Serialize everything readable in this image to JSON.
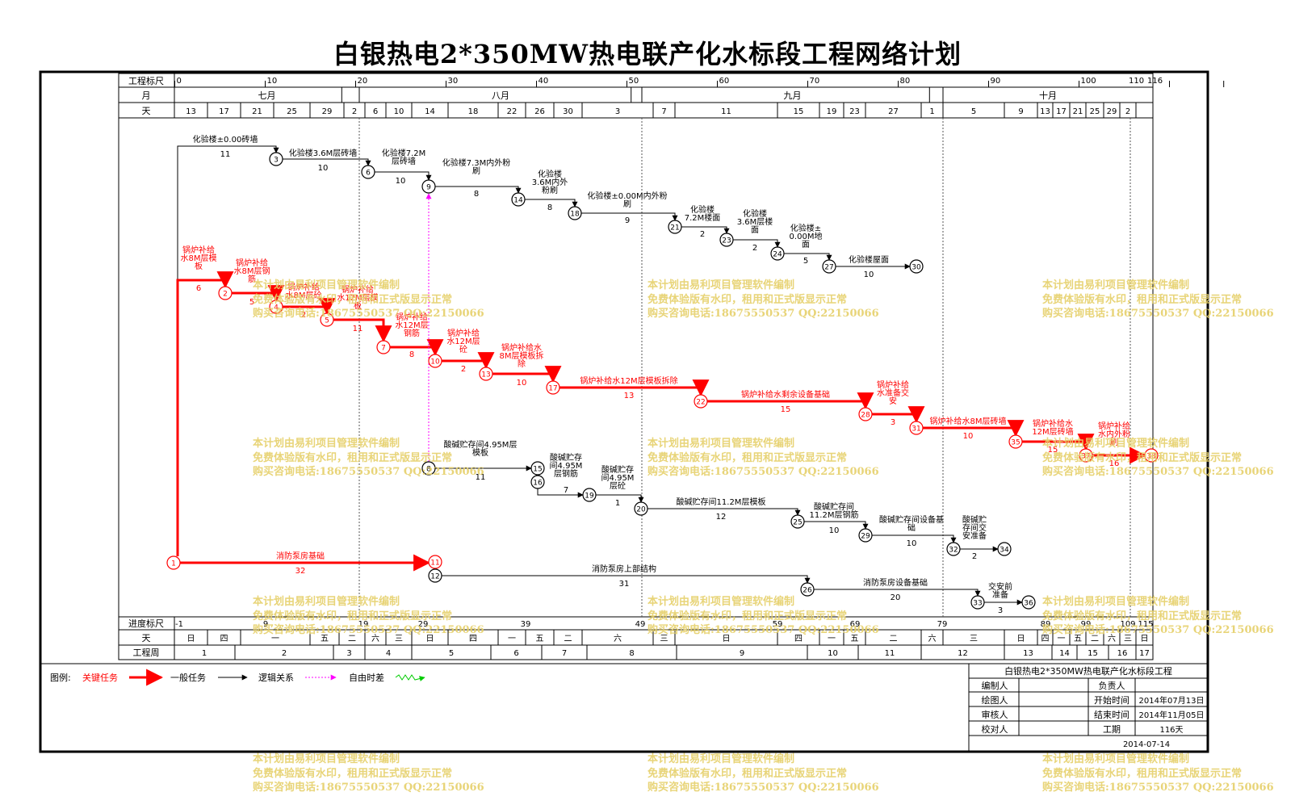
{
  "title": "白银热电2*350MW热电联产化水标段工程网络计划",
  "timeline": {
    "scale_label": "工程标尺",
    "month_label": "月",
    "day_label": "天",
    "scale_ticks": [
      "0",
      "10",
      "20",
      "30",
      "40",
      "50",
      "60",
      "70",
      "80",
      "90",
      "100",
      "110",
      "116"
    ],
    "months": [
      "七月",
      "八月",
      "九月",
      "十月"
    ],
    "days": [
      "13",
      "17",
      "21",
      "25",
      "29",
      "2",
      "6",
      "10",
      "14",
      "18",
      "22",
      "26",
      "30",
      "3",
      "7",
      "11",
      "15",
      "19",
      "23",
      "27",
      "1",
      "5",
      "9",
      "13",
      "17",
      "21",
      "25",
      "29",
      "2"
    ]
  },
  "bottom_scale": {
    "progress_label": "进度标尺",
    "day_label": "天",
    "week_label": "工程周",
    "progress_ticks": [
      "-1",
      "9",
      "19",
      "29",
      "39",
      "49",
      "59",
      "69",
      "79",
      "89",
      "99",
      "109",
      "115"
    ],
    "weekdays": [
      "日",
      "四",
      "一",
      "五",
      "二",
      "六",
      "三",
      "日",
      "四",
      "一",
      "五",
      "二",
      "六",
      "三",
      "日",
      "四",
      "一",
      "五",
      "二",
      "六",
      "三",
      "日",
      "四",
      "一",
      "五",
      "二",
      "六",
      "三",
      "日"
    ],
    "weeks": [
      "1",
      "2",
      "3",
      "4",
      "5",
      "6",
      "7",
      "8",
      "9",
      "10",
      "11",
      "12",
      "13",
      "14",
      "15",
      "16",
      "17"
    ]
  },
  "nodes": [
    "1",
    "2",
    "3",
    "4",
    "5",
    "6",
    "7",
    "8",
    "9",
    "10",
    "11",
    "12",
    "13",
    "14",
    "15",
    "16",
    "17",
    "18",
    "19",
    "20",
    "21",
    "22",
    "23",
    "24",
    "25",
    "26",
    "27",
    "28",
    "29",
    "30",
    "31",
    "32",
    "33",
    "34",
    "35",
    "36",
    "37",
    "38"
  ],
  "tasks": [
    {
      "label": "化验楼±0.00砖墙",
      "duration": "11",
      "critical": false
    },
    {
      "label": "化验楼3.6M层砖墙",
      "duration": "10",
      "critical": false
    },
    {
      "label": "化验楼7.2M层砖墙",
      "duration": "10",
      "critical": false
    },
    {
      "label": "化验楼7.3M内外粉刷",
      "duration": "8",
      "critical": false
    },
    {
      "label": "化验楼3.6M内外粉刷",
      "duration": "8",
      "critical": false
    },
    {
      "label": "化验楼±0.00M内外粉刷",
      "duration": "9",
      "critical": false
    },
    {
      "label": "化验楼7.2M楼面",
      "duration": "2",
      "critical": false
    },
    {
      "label": "化验楼3.6M层楼面",
      "duration": "2",
      "critical": false
    },
    {
      "label": "化验楼±0.00M地面",
      "duration": "5",
      "critical": false
    },
    {
      "label": "化验楼屋面",
      "duration": "10",
      "critical": false
    },
    {
      "label": "锅炉补给水8M层模板",
      "duration": "6",
      "critical": true
    },
    {
      "label": "锅炉补给水8M层钢筋",
      "duration": "5",
      "critical": true
    },
    {
      "label": "锅炉补给水8M层砼",
      "duration": "2",
      "critical": true
    },
    {
      "label": "锅炉补给水12M层模板",
      "duration": "11",
      "critical": true
    },
    {
      "label": "锅炉补给水12M层钢筋",
      "duration": "8",
      "critical": true
    },
    {
      "label": "锅炉补给水12M层砼",
      "duration": "2",
      "critical": true
    },
    {
      "label": "锅炉补给水8M层模板拆除",
      "duration": "10",
      "critical": true
    },
    {
      "label": "锅炉补给水12M层模板拆除",
      "duration": "13",
      "critical": true
    },
    {
      "label": "锅炉补给水剩余设备基础",
      "duration": "15",
      "critical": true
    },
    {
      "label": "锅炉补给水准备交安",
      "duration": "3",
      "critical": true
    },
    {
      "label": "锅炉补给水8M层砖墙",
      "duration": "10",
      "critical": true
    },
    {
      "label": "锅炉补给水12M层砖墙",
      "duration": "15",
      "critical": true
    },
    {
      "label": "锅炉补给水内外粉刷",
      "duration": "16",
      "critical": true
    },
    {
      "label": "酸碱贮存间4.95M层模板",
      "duration": "11",
      "critical": false
    },
    {
      "label": "酸碱贮存间4.95M层钢筋",
      "duration": "7",
      "critical": false
    },
    {
      "label": "酸碱贮存间4.95M层砼",
      "duration": "1",
      "critical": false
    },
    {
      "label": "酸碱贮存间11.2M层模板",
      "duration": "12",
      "critical": false
    },
    {
      "label": "酸碱贮存间11.2M层钢筋",
      "duration": "10",
      "critical": false
    },
    {
      "label": "酸碱贮存间设备基础",
      "duration": "10",
      "critical": false
    },
    {
      "label": "酸碱贮存间交安准备",
      "duration": "2",
      "critical": false
    },
    {
      "label": "消防泵房基础",
      "duration": "32",
      "critical": true
    },
    {
      "label": "消防泵房上部结构",
      "duration": "31",
      "critical": false
    },
    {
      "label": "消防泵房设备基础",
      "duration": "20",
      "critical": false
    },
    {
      "label": "交安前准备",
      "duration": "3",
      "critical": false
    }
  ],
  "legend": {
    "title": "图例:",
    "critical": "关键任务",
    "normal": "一般任务",
    "logic": "逻辑关系",
    "float": "自由时差"
  },
  "titleblock": {
    "project": "白银热电2*350MW热电联产化水标段工程",
    "editor_label": "编制人",
    "owner_label": "负责人",
    "drawer_label": "绘图人",
    "start_label": "开始时间",
    "start_value": "2014年07月13日",
    "reviewer_label": "审核人",
    "end_label": "结束时间",
    "end_value": "2014年11月05日",
    "checker_label": "校对人",
    "period_label": "工期",
    "period_value": "116天",
    "date": "2014-07-14"
  },
  "watermark": {
    "line1": "本计划由易利项目管理软件编制",
    "line2": "免费体验版有水印，租用和正式版显示正常",
    "line3": "购买咨询电话:18675550537 QQ:22150066"
  },
  "colors": {
    "critical": "#ff0000",
    "normal": "#000000",
    "float": "#ff00ff",
    "freefloat": "#00cc00",
    "watermark": "#e6d06a"
  }
}
